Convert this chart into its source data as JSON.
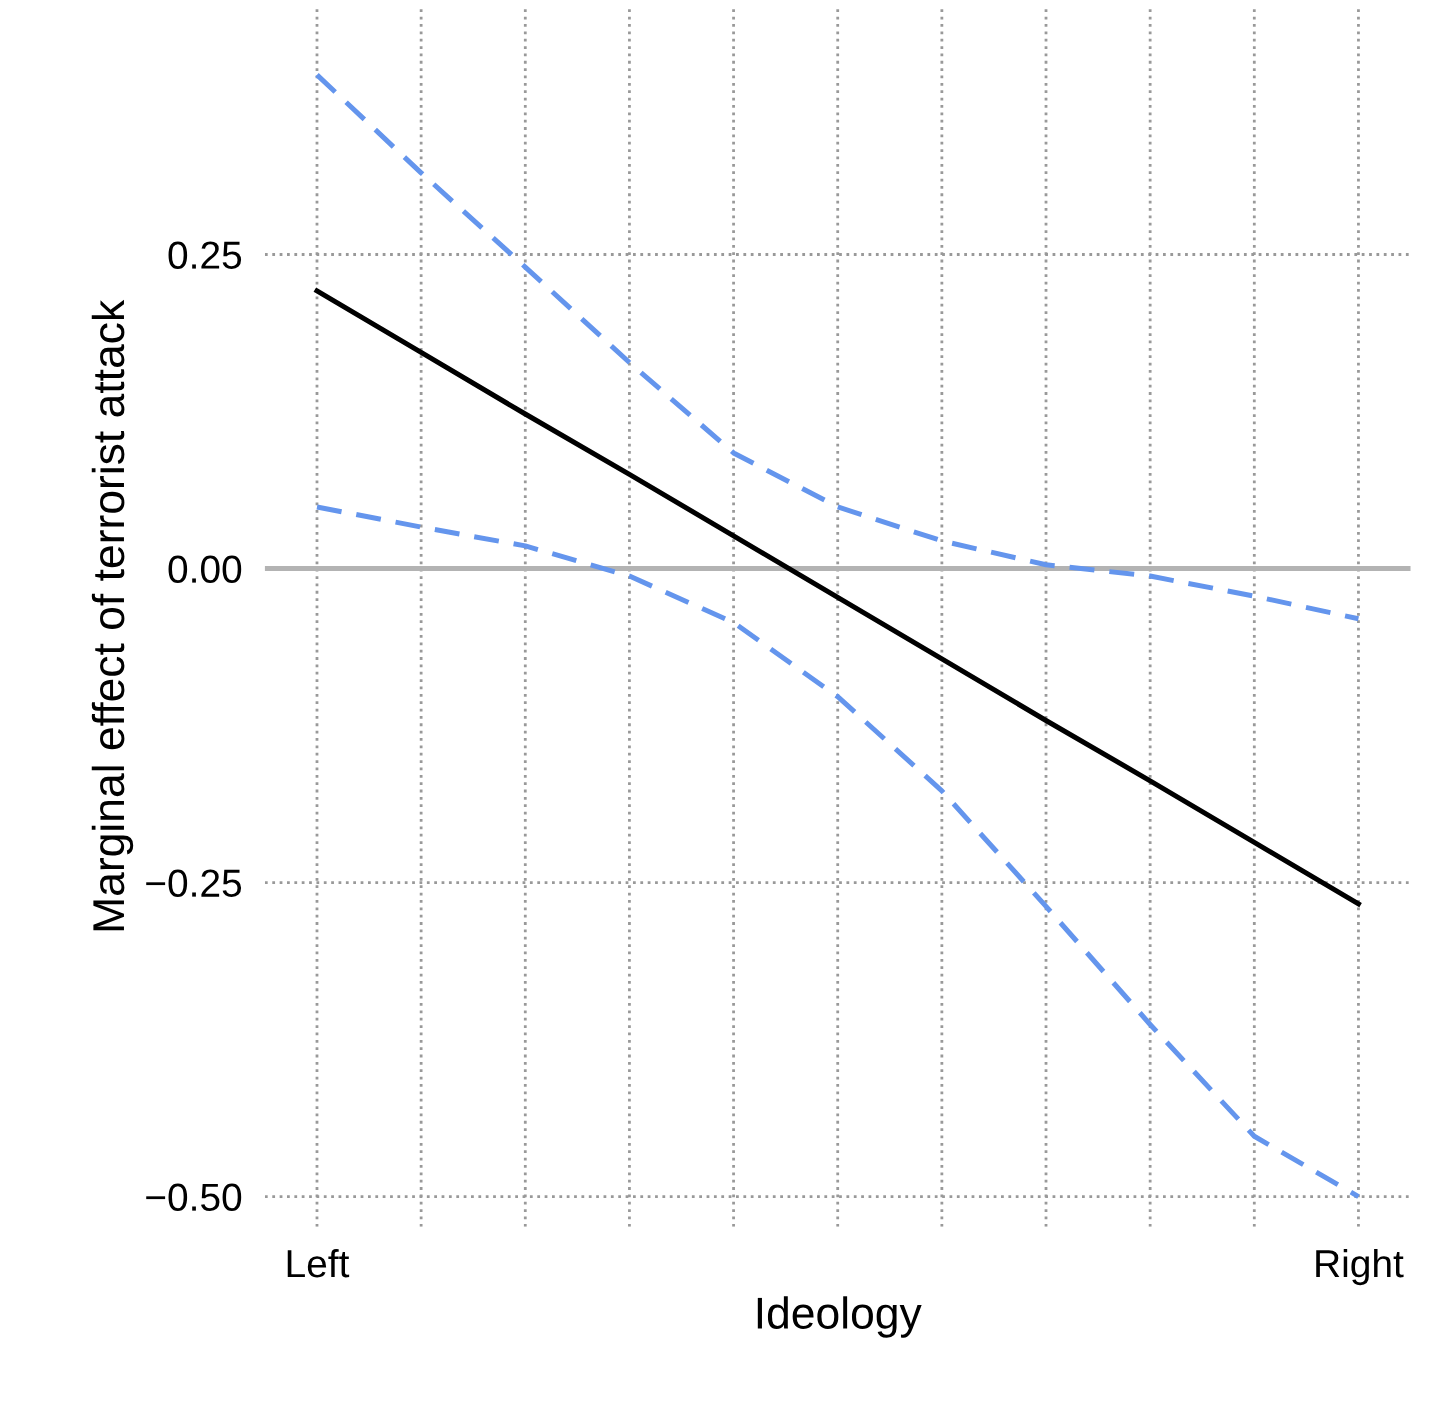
{
  "chart_data": {
    "type": "line",
    "xlabel": "Ideology",
    "ylabel": "Marginal effect of terrorist attack",
    "categories": [
      "Left",
      null,
      null,
      null,
      null,
      null,
      null,
      null,
      null,
      null,
      "Right"
    ],
    "ylim": [
      -0.524,
      0.447
    ],
    "yticks": [
      {
        "value": 0.25,
        "label": "0.25"
      },
      {
        "value": 0,
        "label": "0.00"
      },
      {
        "value": -0.25,
        "label": "−0.25"
      },
      {
        "value": -0.5,
        "label": "−0.50"
      }
    ],
    "grid": true,
    "ref_lines": [
      {
        "axis": "y",
        "value": 0,
        "label": null,
        "color": "#b3b3b3",
        "line_style": "solid"
      }
    ],
    "series": [
      {
        "color": "#000000",
        "line_style": "solid",
        "values": [
          0.221,
          0.172,
          0.123,
          0.075,
          0.026,
          -0.023,
          -0.072,
          -0.121,
          -0.169,
          -0.218,
          -0.267
        ]
      },
      {
        "color": "#6495ed",
        "line_style": "dashed",
        "values": [
          0.393,
          0.315,
          0.24,
          0.164,
          0.092,
          0.049,
          0.022,
          0.003,
          -0.006,
          -0.022,
          -0.04
        ]
      },
      {
        "color": "#6495ed",
        "line_style": "dashed",
        "values": [
          0.049,
          0.033,
          0.018,
          -0.006,
          -0.043,
          -0.102,
          -0.177,
          -0.269,
          -0.363,
          -0.452,
          -0.5
        ]
      }
    ]
  }
}
